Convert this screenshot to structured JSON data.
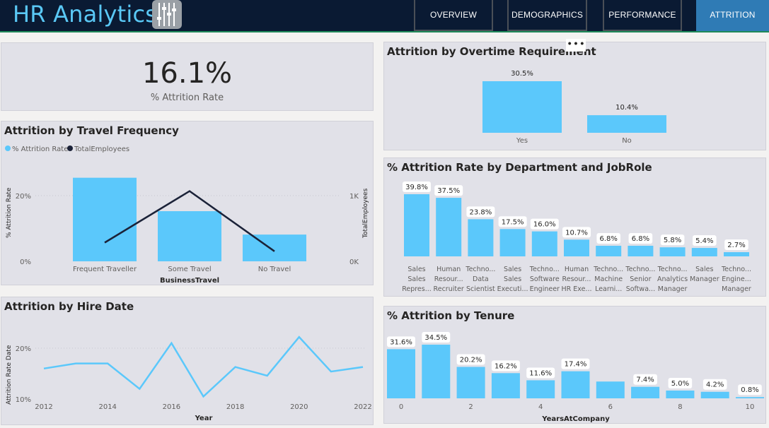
{
  "header": {
    "title": "HR Analytics",
    "logo_icon": "sliders-icon",
    "tabs": [
      {
        "label": "OVERVIEW",
        "active": false
      },
      {
        "label": "DEMOGRAPHICS",
        "active": false
      },
      {
        "label": "PERFORMANCE",
        "active": false
      },
      {
        "label": "ATTRITION",
        "active": true
      }
    ]
  },
  "kpi": {
    "value": "16.1%",
    "label": "% Attrition Rate"
  },
  "colors": {
    "bar": "#5bc8fb",
    "line": "#1b2238",
    "nav_active": "#2f7bb5",
    "header_bg": "#0a1a33",
    "title_accent": "#5ac8f5"
  },
  "more_options": "• • •",
  "travel": {
    "title": "Attrition by Travel Frequency",
    "legend": [
      "% Attrition Rate",
      "TotalEmployees"
    ],
    "chart_data": {
      "type": "bar",
      "categories": [
        "Frequent Traveller",
        "Some Travel",
        "No Travel"
      ],
      "series": [
        {
          "name": "% Attrition Rate",
          "values": [
            25,
            15,
            8
          ]
        },
        {
          "name": "TotalEmployees",
          "values": [
            280,
            1050,
            150
          ]
        }
      ],
      "xlabel": "BusinessTravel",
      "ylabel": "% Attrition Rate",
      "y2label": "TotalEmployees",
      "y_ticks": [
        "0%",
        "20%"
      ],
      "y2_ticks": [
        "0K",
        "1K"
      ],
      "ylim": [
        0,
        30
      ],
      "y2lim": [
        0,
        1500
      ],
      "legend_position": "top-left"
    }
  },
  "hire": {
    "title": "Attrition by Hire Date",
    "chart_data": {
      "type": "line",
      "x": [
        2012,
        2013,
        2014,
        2015,
        2016,
        2017,
        2018,
        2019,
        2020,
        2021,
        2022
      ],
      "values": [
        16.0,
        17.0,
        17.0,
        12.0,
        21.0,
        10.5,
        16.3,
        14.6,
        22.2,
        15.4,
        16.3
      ],
      "x_ticks": [
        "2012",
        "2014",
        "2016",
        "2018",
        "2020",
        "2022"
      ],
      "y_ticks": [
        "10%",
        "20%"
      ],
      "xlabel": "Year",
      "ylabel": "Attrition Rate Date",
      "ylim": [
        10,
        23
      ]
    }
  },
  "overtime": {
    "title": "Attrition by Overtime Requirement",
    "chart_data": {
      "type": "bar",
      "categories": [
        "Yes",
        "No"
      ],
      "values": [
        30.5,
        10.4
      ],
      "labels": [
        "30.5%",
        "10.4%"
      ],
      "ylim": [
        0,
        40
      ]
    }
  },
  "dept": {
    "title": "% Attrition Rate by Department and JobRole",
    "chart_data": {
      "type": "bar",
      "categories": [
        [
          "Sales",
          "Sales",
          "Repres..."
        ],
        [
          "Human",
          "Resour...",
          "Recruiter"
        ],
        [
          "Techno...",
          "Data",
          "Scientist"
        ],
        [
          "Sales",
          "Sales",
          "Executi..."
        ],
        [
          "Techno...",
          "Software",
          "Engineer"
        ],
        [
          "Human",
          "Resour...",
          "HR Exe..."
        ],
        [
          "Techno...",
          "Machine",
          "Learni..."
        ],
        [
          "Techno...",
          "Senior",
          "Softwa..."
        ],
        [
          "Techno...",
          "Analytics",
          "Manager"
        ],
        [
          "Sales",
          "Manager",
          ""
        ],
        [
          "Techno...",
          "Engine...",
          "Manager"
        ]
      ],
      "values": [
        39.8,
        37.5,
        23.8,
        17.5,
        16.0,
        10.7,
        6.8,
        6.8,
        5.8,
        5.4,
        2.7
      ],
      "labels": [
        "39.8%",
        "37.5%",
        "23.8%",
        "17.5%",
        "16.0%",
        "10.7%",
        "6.8%",
        "6.8%",
        "5.8%",
        "5.4%",
        "2.7%"
      ],
      "ylim": [
        0,
        48
      ]
    }
  },
  "tenure": {
    "title": "% Attrition by Tenure",
    "chart_data": {
      "type": "bar",
      "categories": [
        0,
        1,
        2,
        3,
        4,
        5,
        6,
        7,
        8,
        9,
        10
      ],
      "values": [
        31.6,
        34.5,
        20.2,
        16.2,
        11.6,
        17.4,
        10.8,
        7.4,
        5.0,
        4.2,
        0.8
      ],
      "labels": [
        "31.6%",
        "34.5%",
        "20.2%",
        "16.2%",
        "11.6%",
        "17.4%",
        "",
        "7.4%",
        "5.0%",
        "4.2%",
        "0.8%"
      ],
      "x_ticks": [
        "0",
        "2",
        "4",
        "6",
        "8",
        "10"
      ],
      "xlabel": "YearsAtCompany",
      "ylim": [
        0,
        40
      ]
    }
  }
}
